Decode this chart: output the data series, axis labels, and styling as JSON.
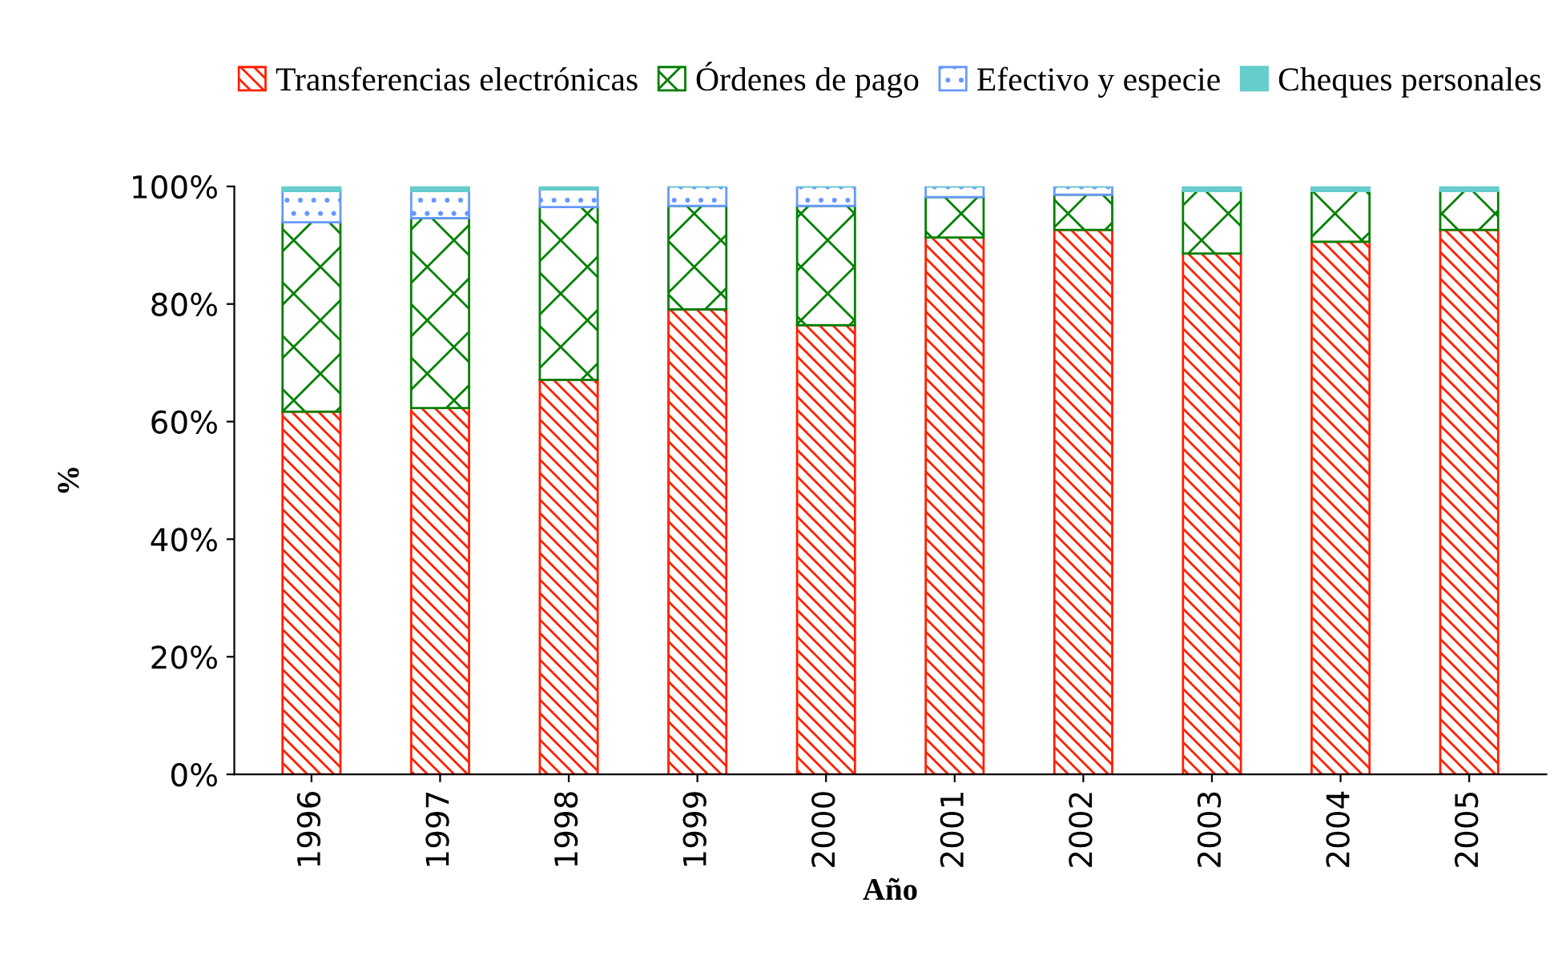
{
  "chart_data": {
    "type": "bar",
    "stacked": true,
    "xlabel": "Año",
    "ylabel": "%",
    "categories": [
      "1996",
      "1997",
      "1998",
      "1999",
      "2000",
      "2001",
      "2002",
      "2003",
      "2004",
      "2005"
    ],
    "series": [
      {
        "name": "Transferencias electrónicas",
        "color": "#ff2000",
        "values": [
          61.7,
          62.3,
          67.1,
          79.1,
          76.4,
          91.3,
          92.6,
          88.6,
          90.6,
          92.6
        ]
      },
      {
        "name": "Órdenes de pago",
        "color": "#008000",
        "values": [
          32.2,
          32.3,
          29.4,
          17.6,
          20.3,
          6.9,
          6.0,
          10.6,
          8.6,
          6.6
        ]
      },
      {
        "name": "Efectivo y especie",
        "color": "#6699ff",
        "values": [
          5.3,
          4.6,
          3.0,
          3.3,
          3.3,
          1.8,
          1.4,
          0,
          0,
          0
        ]
      },
      {
        "name": "Cheques personales",
        "color": "#66cccc",
        "values": [
          0.8,
          0.8,
          0.5,
          0,
          0,
          0,
          0,
          0.8,
          0.8,
          0.8
        ]
      }
    ],
    "ylim": [
      0,
      100
    ],
    "yticks": [
      {
        "value": 0,
        "label": "0%"
      },
      {
        "value": 20,
        "label": "20%"
      },
      {
        "value": 40,
        "label": "40%"
      },
      {
        "value": 60,
        "label": "60%"
      },
      {
        "value": 80,
        "label": "80%"
      },
      {
        "value": 100,
        "label": "100%"
      }
    ],
    "grid": false,
    "legend": "top"
  }
}
